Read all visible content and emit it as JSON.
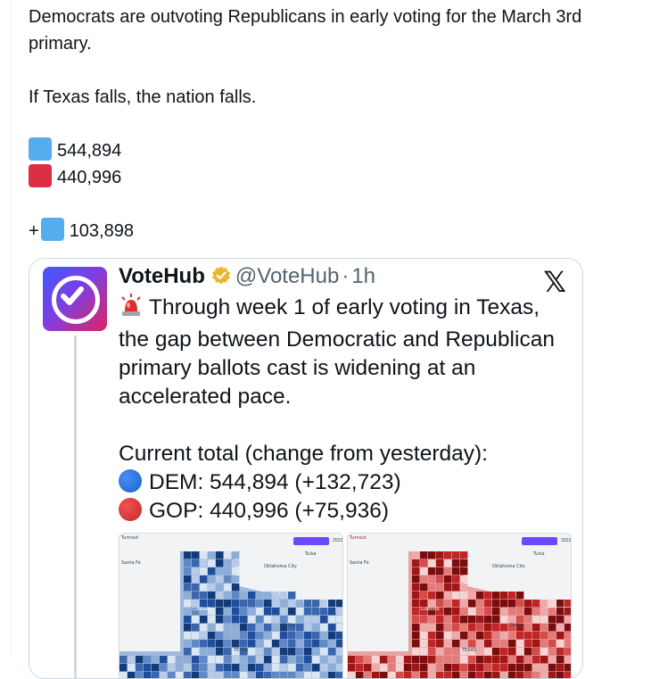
{
  "post": {
    "line1": "Democrats are outvoting Republicans in early voting for the March 3rd primary.",
    "line2": "If Texas falls, the nation falls.",
    "dem_total": "544,894",
    "gop_total": "440,996",
    "margin_prefix": "+",
    "margin_value": "103,898"
  },
  "quoted": {
    "name": "VoteHub",
    "handle": "@VoteHub",
    "separator": "·",
    "time": "1h",
    "x_logo": "𝕏",
    "text1": "Through week 1 of early voting in Texas, the gap between Democratic and Republican primary ballots cast is widening at an accelerated pace.",
    "text2": "Current total (change from yesterday):",
    "dem_line": "DEM: 544,894 (+132,723)",
    "gop_line": "GOP: 440,996 (+75,936)",
    "map_left": {
      "label_turnout": "Turnout",
      "label_tulsa": "Tulsa",
      "label_oklahoma": "Oklahoma City",
      "label_santafe": "Santa Fe",
      "label_lubbock": "Lubbock",
      "label_dallas": "Dallas",
      "label_texas": "TEXAS",
      "year": "2022"
    },
    "map_right": {
      "label_turnout": "Turnout",
      "label_tulsa": "Tulsa",
      "label_oklahoma": "Oklahoma City",
      "label_santafe": "Santa Fe",
      "label_lubbock": "Lubbock",
      "label_dallas": "Dallas",
      "label_texas": "TEXAS",
      "year": "2022"
    }
  },
  "colors": {
    "dem_square": "#55acee",
    "gop_square": "#dd2e44",
    "verified_gold": "#e8b830",
    "map_blue": "#1f4e9c",
    "map_red": "#b3161c"
  },
  "icons": {
    "dem_square": "blue-square-icon",
    "gop_square": "red-square-icon",
    "verified": "verified-badge-icon",
    "alert": "police-light-icon",
    "dem_dot": "blue-circle-icon",
    "gop_dot": "red-circle-icon"
  }
}
